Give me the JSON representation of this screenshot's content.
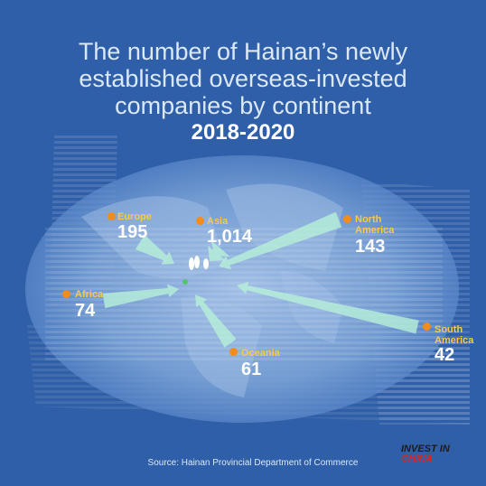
{
  "title": {
    "line1": "The number of Hainan’s newly",
    "line2": "established overseas-invested",
    "line3": "companies by continent",
    "years": "2018-2020"
  },
  "source": "Source: Hainan Provincial Department of Commerce",
  "logo": {
    "top": "INVEST IN",
    "bottom": "CHINA"
  },
  "colors": {
    "background": "#2f5fa8",
    "label": "#f7c94b",
    "dot": "#f28c1b",
    "value": "#ffffff",
    "arrow": "#b7f0d8"
  },
  "chart_data": {
    "type": "map-flow",
    "title": "The number of Hainan’s newly established overseas-invested companies by continent",
    "subtitle": "2018-2020",
    "categories": [
      "Europe",
      "Asia",
      "North America",
      "Africa",
      "South America",
      "Oceania"
    ],
    "values": [
      195,
      1014,
      143,
      74,
      42,
      61
    ],
    "display_values": [
      "195",
      "1,014",
      "143",
      "74",
      "42",
      "61"
    ],
    "labels": [
      "Europe",
      "Asia",
      "North\nAmerica",
      "Africa",
      "South\nAmerica",
      "Oceania"
    ]
  }
}
